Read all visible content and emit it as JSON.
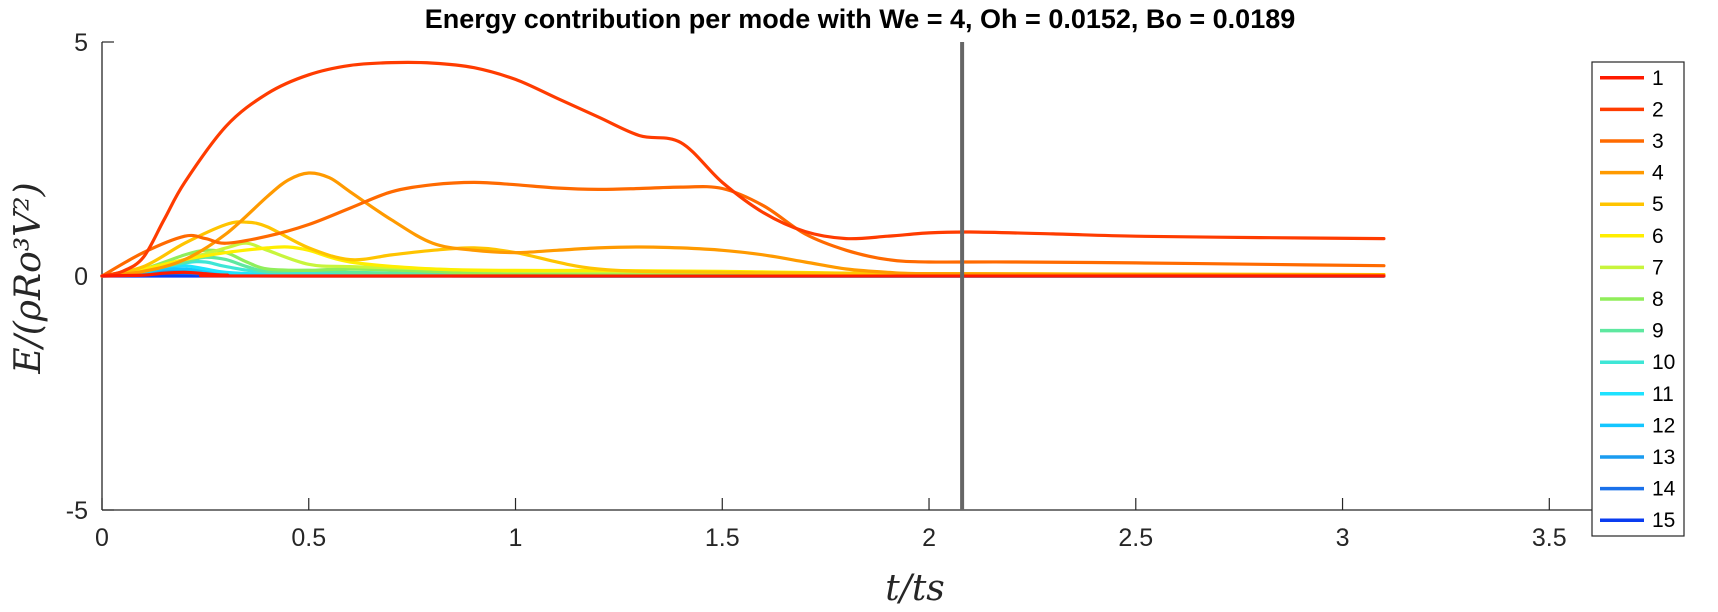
{
  "chart_data": {
    "type": "line",
    "title": "Energy contribution per mode with We = 4, Oh = 0.0152, Bo = 0.0189",
    "xlabel": "t/ts",
    "ylabel": "E/(ρRo³V²)",
    "xlim": [
      0,
      3.7
    ],
    "ylim": [
      -5,
      5
    ],
    "xticks": [
      "0",
      "0.5",
      "1",
      "1.5",
      "2",
      "2.5",
      "3",
      "3.5"
    ],
    "yticks": [
      "-5",
      "0",
      "5"
    ],
    "grid": false,
    "legend_position": "right",
    "vertical_line_x": 2.08,
    "series": [
      {
        "name": "1",
        "color": "#ff1a00",
        "x": [
          0,
          0.1,
          0.15,
          0.2,
          0.25,
          0.3,
          0.5,
          3.1
        ],
        "y": [
          0,
          0.02,
          0.06,
          0.08,
          0.05,
          0.02,
          0,
          0
        ]
      },
      {
        "name": "2",
        "color": "#ff3c00",
        "x": [
          0,
          0.05,
          0.1,
          0.15,
          0.2,
          0.3,
          0.4,
          0.5,
          0.6,
          0.7,
          0.8,
          0.9,
          1.0,
          1.1,
          1.2,
          1.3,
          1.4,
          1.5,
          1.6,
          1.7,
          1.8,
          1.9,
          2.0,
          2.1,
          2.3,
          2.5,
          2.8,
          3.1
        ],
        "y": [
          0,
          0.1,
          0.4,
          1.2,
          2.0,
          3.2,
          3.9,
          4.3,
          4.5,
          4.56,
          4.55,
          4.45,
          4.2,
          3.8,
          3.4,
          3.0,
          2.85,
          2.0,
          1.35,
          0.95,
          0.8,
          0.85,
          0.92,
          0.94,
          0.9,
          0.85,
          0.82,
          0.8
        ]
      },
      {
        "name": "3",
        "color": "#ff6a00",
        "x": [
          0,
          0.1,
          0.2,
          0.25,
          0.3,
          0.4,
          0.5,
          0.6,
          0.7,
          0.8,
          0.9,
          1.0,
          1.1,
          1.2,
          1.3,
          1.4,
          1.5,
          1.6,
          1.7,
          1.8,
          1.9,
          2.0,
          2.2,
          2.5,
          2.8,
          3.1
        ],
        "y": [
          0,
          0.5,
          0.85,
          0.8,
          0.7,
          0.85,
          1.1,
          1.45,
          1.8,
          1.95,
          2.0,
          1.95,
          1.88,
          1.85,
          1.87,
          1.9,
          1.87,
          1.5,
          0.9,
          0.55,
          0.35,
          0.3,
          0.3,
          0.28,
          0.25,
          0.22
        ]
      },
      {
        "name": "4",
        "color": "#ff9a00",
        "x": [
          0,
          0.1,
          0.2,
          0.3,
          0.4,
          0.45,
          0.5,
          0.55,
          0.6,
          0.7,
          0.8,
          0.9,
          1.0,
          1.1,
          1.2,
          1.3,
          1.4,
          1.5,
          1.6,
          1.7,
          1.8,
          1.9,
          2.0,
          2.5,
          3.1
        ],
        "y": [
          0,
          0.1,
          0.35,
          0.9,
          1.7,
          2.05,
          2.2,
          2.1,
          1.8,
          1.2,
          0.7,
          0.55,
          0.5,
          0.55,
          0.6,
          0.62,
          0.6,
          0.55,
          0.45,
          0.3,
          0.15,
          0.08,
          0.05,
          0.03,
          0.02
        ]
      },
      {
        "name": "5",
        "color": "#ffc400",
        "x": [
          0,
          0.1,
          0.2,
          0.3,
          0.35,
          0.4,
          0.5,
          0.6,
          0.7,
          0.8,
          0.9,
          1.0,
          1.2,
          1.5,
          2.0,
          3.1
        ],
        "y": [
          0,
          0.2,
          0.7,
          1.1,
          1.15,
          1.05,
          0.6,
          0.35,
          0.45,
          0.55,
          0.6,
          0.5,
          0.15,
          0.08,
          0.05,
          0.03
        ]
      },
      {
        "name": "6",
        "color": "#ffee00",
        "x": [
          0,
          0.1,
          0.2,
          0.3,
          0.4,
          0.45,
          0.5,
          0.6,
          0.8,
          1.0,
          1.2,
          1.5,
          2.0,
          3.1
        ],
        "y": [
          0,
          0.15,
          0.35,
          0.5,
          0.6,
          0.62,
          0.55,
          0.3,
          0.15,
          0.12,
          0.12,
          0.1,
          0.05,
          0.03
        ]
      },
      {
        "name": "7",
        "color": "#c8f53c",
        "x": [
          0,
          0.1,
          0.2,
          0.3,
          0.35,
          0.4,
          0.5,
          0.6,
          0.8,
          1.0,
          1.5,
          2.0,
          3.1
        ],
        "y": [
          0,
          0.1,
          0.35,
          0.6,
          0.7,
          0.55,
          0.25,
          0.2,
          0.15,
          0.1,
          0.08,
          0.05,
          0.02
        ]
      },
      {
        "name": "8",
        "color": "#90ee5a",
        "x": [
          0,
          0.1,
          0.2,
          0.25,
          0.3,
          0.35,
          0.4,
          0.5,
          0.6,
          0.8,
          1.0,
          2.0,
          3.1
        ],
        "y": [
          0,
          0.15,
          0.45,
          0.55,
          0.5,
          0.3,
          0.15,
          0.12,
          0.15,
          0.1,
          0.05,
          0.03,
          0.02
        ]
      },
      {
        "name": "9",
        "color": "#5ee8a0",
        "x": [
          0,
          0.1,
          0.2,
          0.25,
          0.3,
          0.35,
          0.4,
          0.5,
          0.6,
          0.8,
          1.0,
          2.0,
          3.1
        ],
        "y": [
          0,
          0.1,
          0.3,
          0.4,
          0.35,
          0.2,
          0.1,
          0.12,
          0.08,
          0.05,
          0.03,
          0.02,
          0.01
        ]
      },
      {
        "name": "10",
        "color": "#3ee6d6",
        "x": [
          0,
          0.1,
          0.2,
          0.25,
          0.3,
          0.4,
          0.6,
          1.0,
          2.0,
          3.1
        ],
        "y": [
          0,
          0.12,
          0.28,
          0.3,
          0.2,
          0.08,
          0.05,
          0.03,
          0.01,
          0.01
        ]
      },
      {
        "name": "11",
        "color": "#1ee2ff",
        "x": [
          0,
          0.1,
          0.15,
          0.2,
          0.25,
          0.3,
          0.4,
          0.6,
          1.0,
          3.1
        ],
        "y": [
          0,
          0.1,
          0.2,
          0.22,
          0.15,
          0.08,
          0.04,
          0.02,
          0.01,
          0
        ]
      },
      {
        "name": "12",
        "color": "#14c6ff",
        "x": [
          0,
          0.1,
          0.15,
          0.2,
          0.25,
          0.3,
          0.4,
          0.6,
          1.0,
          3.1
        ],
        "y": [
          0,
          0.08,
          0.15,
          0.15,
          0.1,
          0.05,
          0.02,
          0.01,
          0,
          0
        ]
      },
      {
        "name": "13",
        "color": "#1a9cf0",
        "x": [
          0,
          0.1,
          0.15,
          0.2,
          0.25,
          0.3,
          0.5,
          1.0,
          3.1
        ],
        "y": [
          0,
          0.05,
          0.1,
          0.1,
          0.06,
          0.03,
          0.01,
          0,
          0
        ]
      },
      {
        "name": "14",
        "color": "#1a70ea",
        "x": [
          0,
          0.1,
          0.15,
          0.2,
          0.25,
          0.3,
          0.5,
          1.0,
          3.1
        ],
        "y": [
          0,
          0.03,
          0.06,
          0.06,
          0.04,
          0.02,
          0.01,
          0,
          0
        ]
      },
      {
        "name": "15",
        "color": "#0a3cf0",
        "x": [
          0,
          0.5,
          1.0,
          1.5,
          2.0,
          2.5,
          3.1
        ],
        "y": [
          0,
          0,
          0,
          0,
          0,
          0,
          0
        ]
      }
    ]
  }
}
